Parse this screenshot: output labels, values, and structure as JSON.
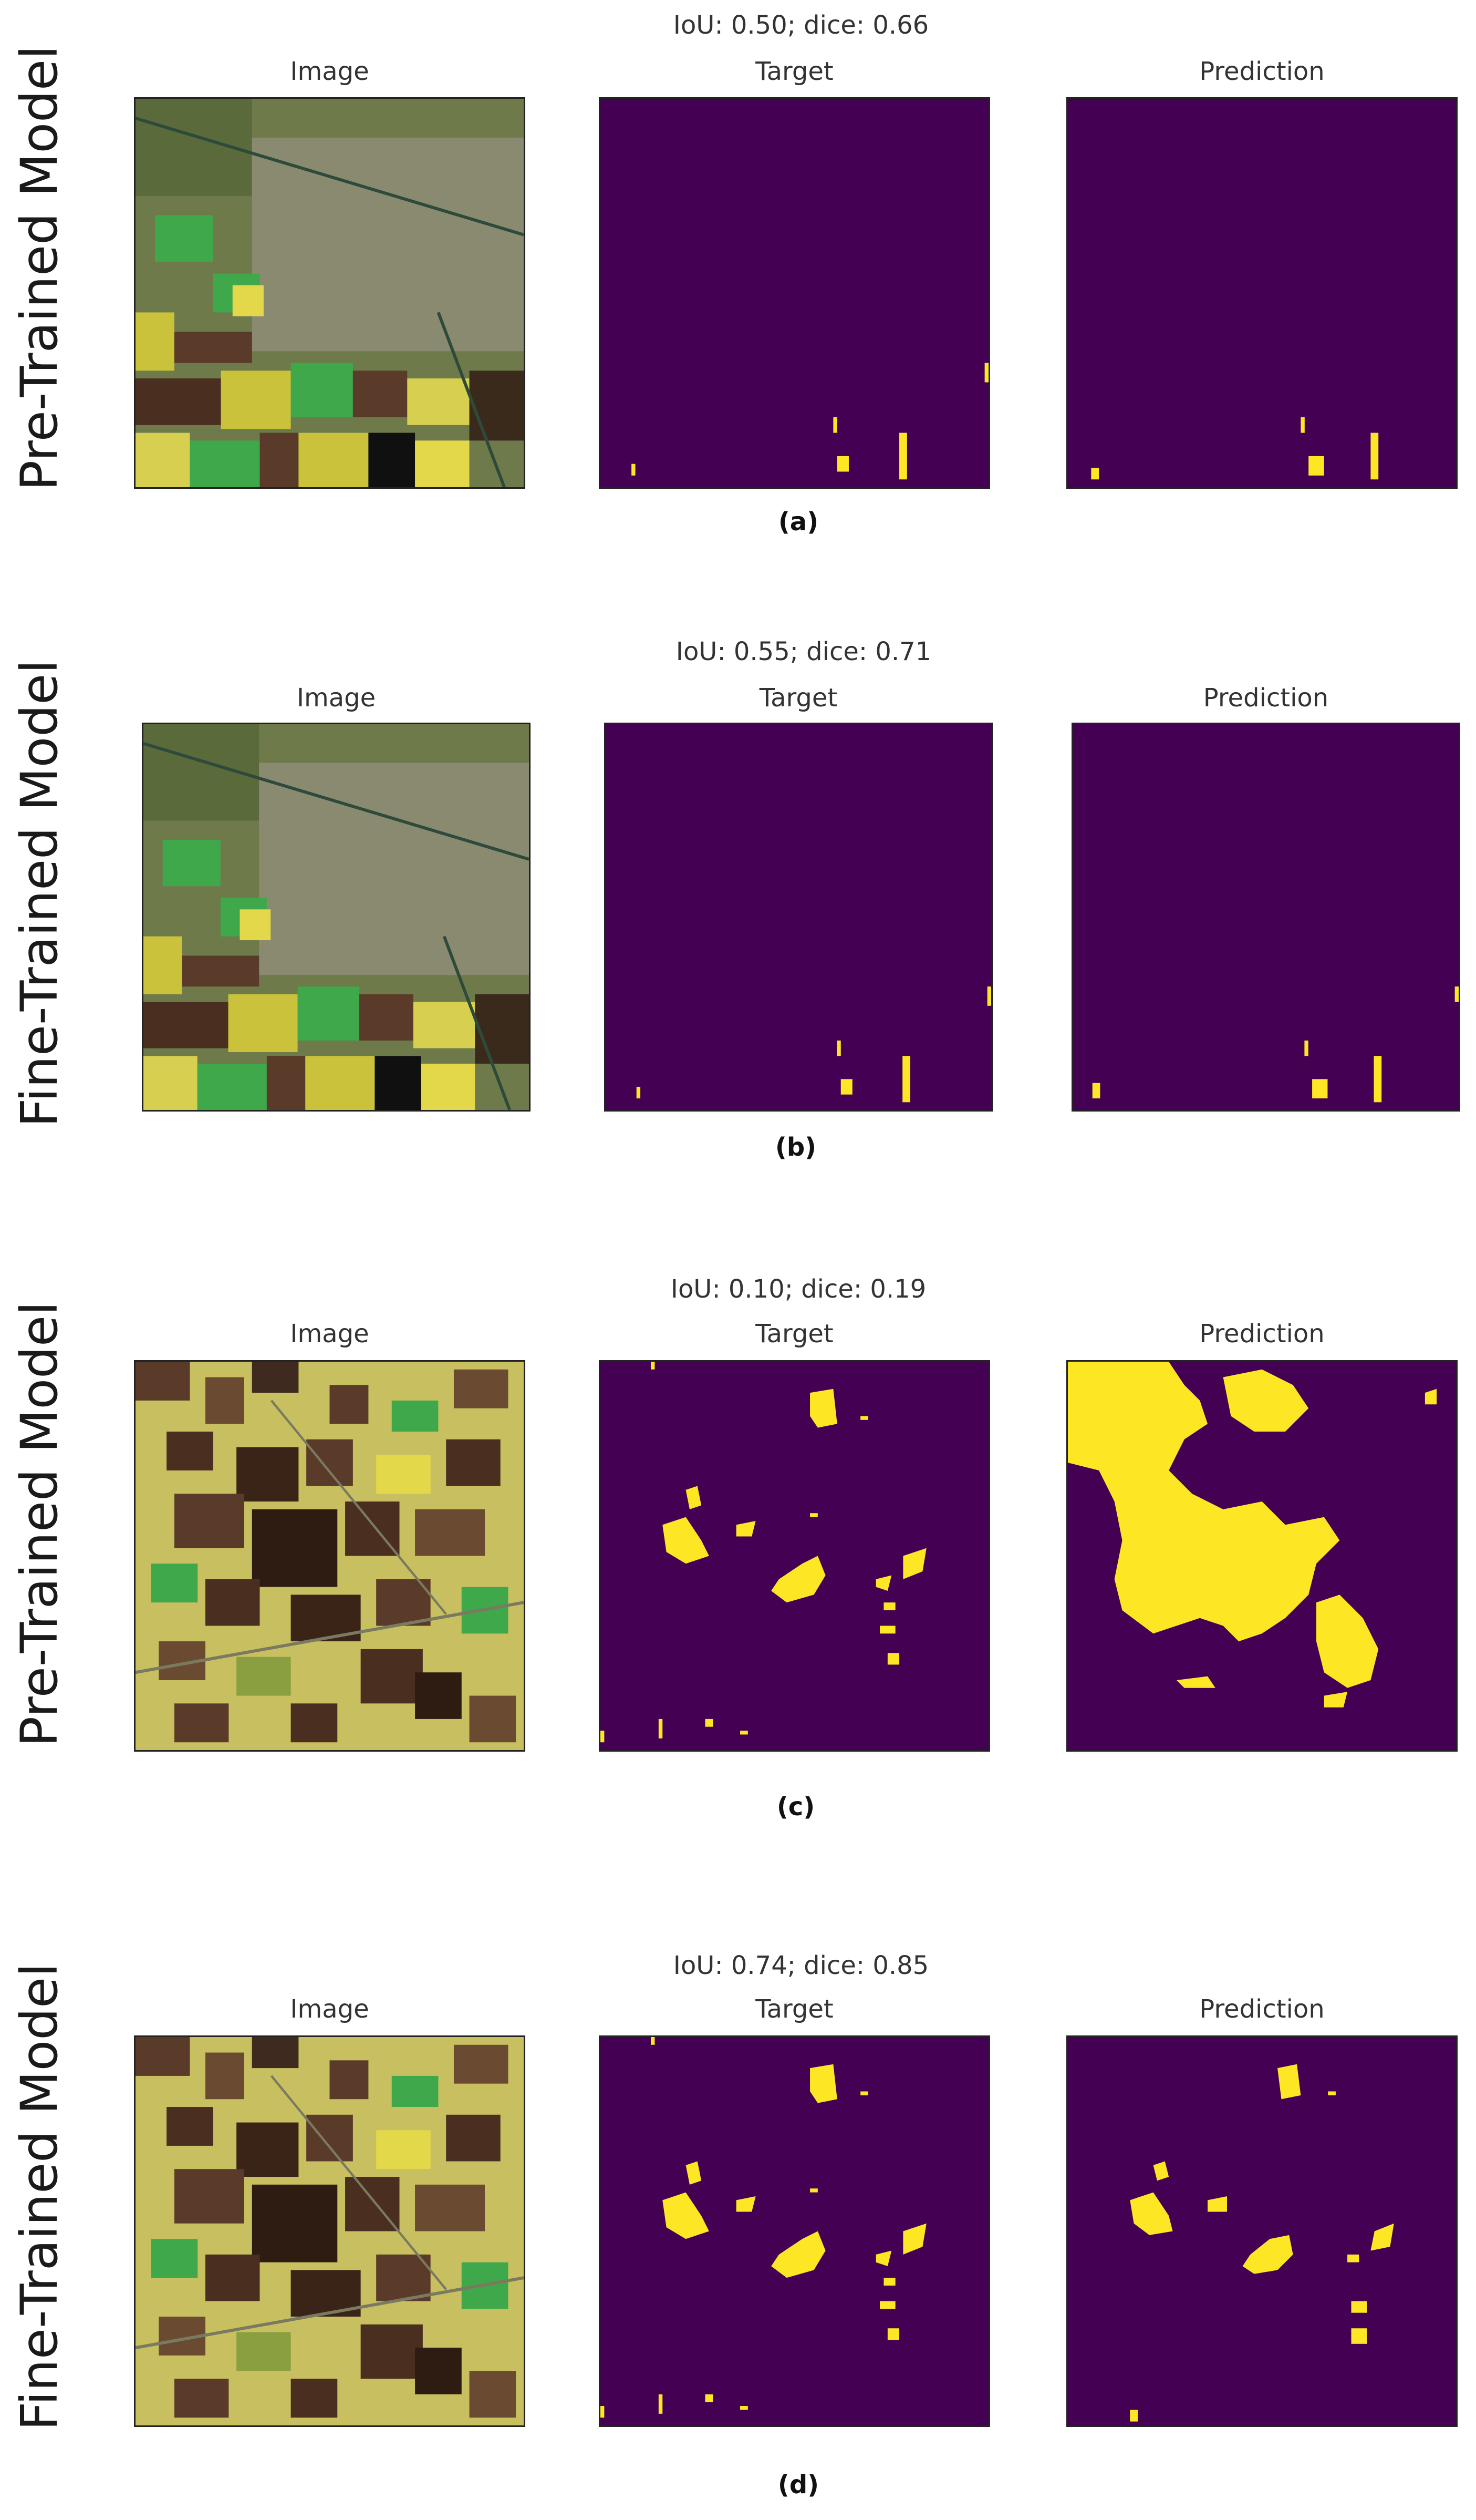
{
  "column_titles": [
    "Image",
    "Target",
    "Prediction"
  ],
  "colors": {
    "mask_background": "#440154",
    "mask_foreground": "#fde725"
  },
  "rows": [
    {
      "label": "Pre-Trained Model",
      "metric": "IoU: 0.50; dice: 0.66",
      "caption": "(a)"
    },
    {
      "label": "Fine-Trained Model",
      "metric": "IoU: 0.55; dice: 0.71",
      "caption": "(b)"
    },
    {
      "label": "Pre-Trained Model",
      "metric": "IoU: 0.10; dice: 0.19",
      "caption": "(c)"
    },
    {
      "label": "Fine-Trained Model",
      "metric": "IoU: 0.74; dice: 0.85",
      "caption": "(d)"
    }
  ]
}
